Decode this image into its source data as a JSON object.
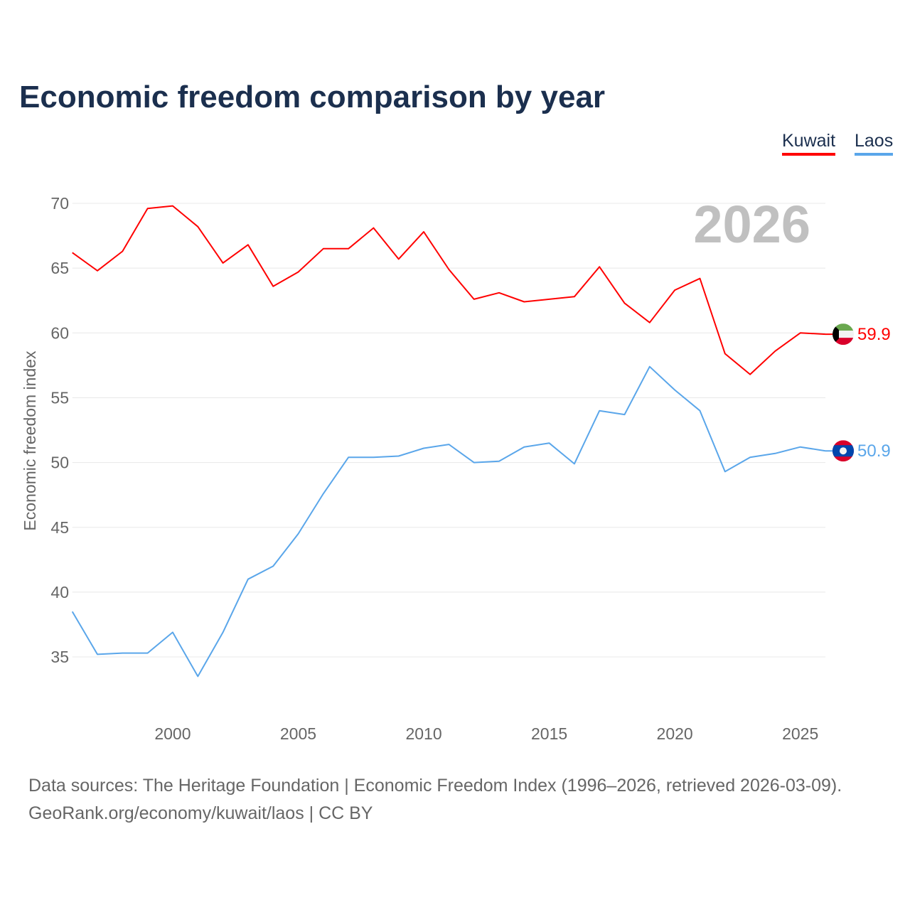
{
  "title": "Economic freedom comparison by year",
  "legend": [
    {
      "name": "Kuwait",
      "color": "#ff0000"
    },
    {
      "name": "Laos",
      "color": "#5aa6ea"
    }
  ],
  "source_line1": "Data sources: The Heritage Foundation | Economic Freedom Index (1996–2026, retrieved 2026-03-09).",
  "source_line2": "GeoRank.org/economy/kuwait/laos | CC BY",
  "chart_data": {
    "type": "line",
    "title": "Economic freedom comparison by year",
    "xlabel": "",
    "ylabel": "Economic freedom index",
    "year_watermark": "2026",
    "xlim": [
      1996,
      2026
    ],
    "ylim": [
      30,
      72
    ],
    "yticks": [
      35,
      40,
      45,
      50,
      55,
      60,
      65,
      70
    ],
    "xticks": [
      2000,
      2005,
      2010,
      2015,
      2020,
      2025
    ],
    "grid": true,
    "legend_position": "top-right",
    "x": [
      1996,
      1997,
      1998,
      1999,
      2000,
      2001,
      2002,
      2003,
      2004,
      2005,
      2006,
      2007,
      2008,
      2009,
      2010,
      2011,
      2012,
      2013,
      2014,
      2015,
      2016,
      2017,
      2018,
      2019,
      2020,
      2021,
      2022,
      2023,
      2024,
      2025,
      2026
    ],
    "series": [
      {
        "name": "Kuwait",
        "color": "#ff0000",
        "end_label": "59.9",
        "flag": "kuwait-flag",
        "values": [
          66.2,
          64.8,
          66.3,
          69.6,
          69.8,
          68.2,
          65.4,
          66.8,
          63.6,
          64.7,
          66.5,
          66.5,
          68.1,
          65.7,
          67.8,
          64.9,
          62.6,
          63.1,
          62.4,
          62.6,
          62.8,
          65.1,
          62.3,
          60.8,
          63.3,
          64.2,
          58.4,
          56.8,
          58.6,
          60.0,
          59.9
        ]
      },
      {
        "name": "Laos",
        "color": "#5aa6ea",
        "end_label": "50.9",
        "flag": "laos-flag",
        "values": [
          38.5,
          35.2,
          35.3,
          35.3,
          36.9,
          33.5,
          36.9,
          41.0,
          42.0,
          44.5,
          47.6,
          50.4,
          50.4,
          50.5,
          51.1,
          51.4,
          50.0,
          50.1,
          51.2,
          51.5,
          49.9,
          54.0,
          53.7,
          57.4,
          55.6,
          54.0,
          49.3,
          50.4,
          50.7,
          51.2,
          50.9
        ]
      }
    ]
  }
}
